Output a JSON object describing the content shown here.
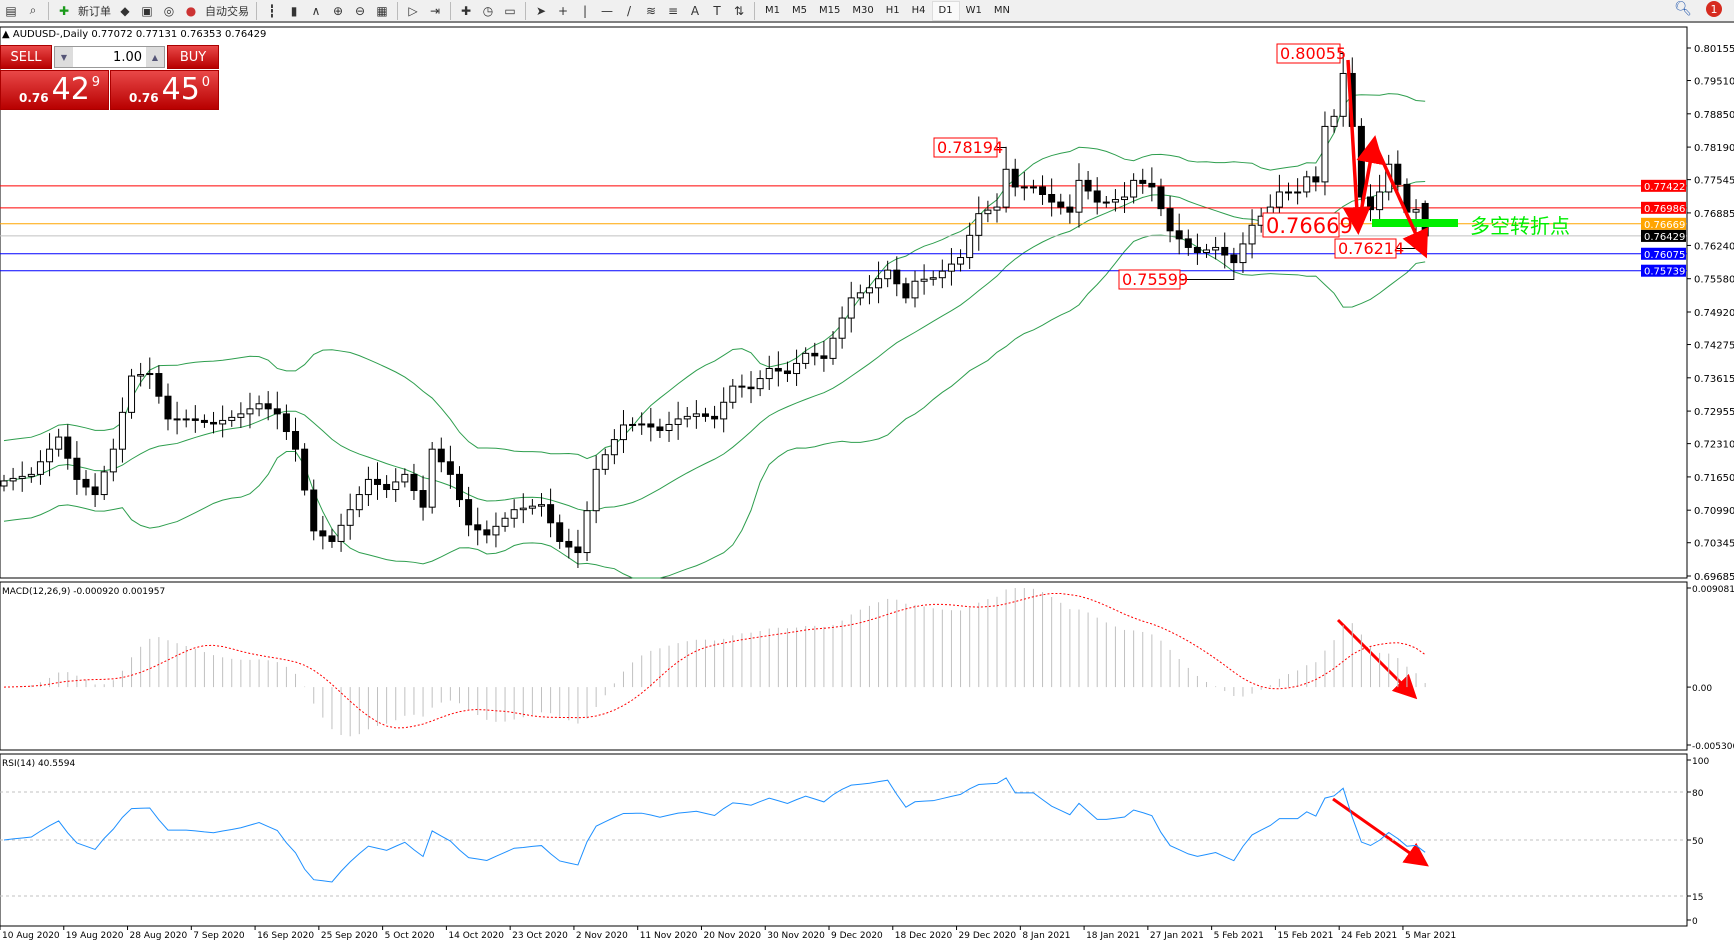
{
  "toolbar": {
    "new_order": "新订单",
    "auto_trading": "自动交易",
    "icons": [
      "chart-icon",
      "zoom-window-icon",
      "new-order-icon",
      "expert-icon",
      "market-watch-icon",
      "signal-icon",
      "auto-trading-icon",
      "bar-chart-icon",
      "candlestick-icon",
      "line-chart-icon",
      "zoom-in-icon",
      "zoom-out-icon",
      "tile-icon",
      "autoscroll-icon",
      "chart-shift-icon",
      "indicators-icon",
      "periods-icon",
      "templates-icon",
      "cursor-icon",
      "crosshair-icon",
      "vertical-line-icon",
      "horizontal-line-icon",
      "trendline-icon",
      "fibonacci-icon",
      "fibonacci-fan-icon",
      "text-icon",
      "text-label-icon",
      "arrows-icon"
    ],
    "timeframes": [
      "M1",
      "M5",
      "M15",
      "M30",
      "H1",
      "H4",
      "D1",
      "W1",
      "MN"
    ],
    "selected_timeframe": "D1",
    "notification_count": "1"
  },
  "chart": {
    "header": "AUDUSD-,Daily  0.77072 0.77131 0.76353 0.76429"
  },
  "trade_panel": {
    "sell_label": "SELL",
    "buy_label": "BUY",
    "lot": "1.00",
    "sell_prefix": "0.76",
    "sell_big": "42",
    "sell_sup": "9",
    "buy_prefix": "0.76",
    "buy_big": "45",
    "buy_sup": "0"
  },
  "colors": {
    "bull_body": "#ffffff",
    "bear_body": "#000000",
    "bands": "#2e9e4e",
    "macd_hist": "#c0c0c0",
    "macd_signal": "#ff0000",
    "rsi": "#1e90ff",
    "annotation": "#ff0000",
    "green_marker": "#00ee00"
  },
  "annotation_text": "多空转折点",
  "chart_data": [
    {
      "type": "candlestick",
      "symbol": "AUDUSD",
      "timeframe": "Daily",
      "ylim": [
        0.69685,
        0.80155
      ],
      "yticks": [
        "0.80155",
        "0.79510",
        "0.78850",
        "0.78190",
        "0.77545",
        "0.76885",
        "0.76240",
        "0.75580",
        "0.74920",
        "0.74275",
        "0.73615",
        "0.72955",
        "0.72310",
        "0.71650",
        "0.70990",
        "0.70345",
        "0.69685"
      ],
      "xticks": [
        "10 Aug 2020",
        "19 Aug 2020",
        "28 Aug 2020",
        "7 Sep 2020",
        "16 Sep 2020",
        "25 Sep 2020",
        "5 Oct 2020",
        "14 Oct 2020",
        "23 Oct 2020",
        "2 Nov 2020",
        "11 Nov 2020",
        "20 Nov 2020",
        "30 Nov 2020",
        "9 Dec 2020",
        "18 Dec 2020",
        "29 Dec 2020",
        "8 Jan 2021",
        "18 Jan 2021",
        "27 Jan 2021",
        "5 Feb 2021",
        "15 Feb 2021",
        "24 Feb 2021",
        "5 Mar 2021"
      ],
      "last_bar": {
        "open": 0.77072,
        "high": 0.77131,
        "low": 0.76353,
        "close": 0.76429
      },
      "close": [
        0.7157,
        0.7162,
        0.7166,
        0.717,
        0.7195,
        0.722,
        0.7244,
        0.7202,
        0.716,
        0.7145,
        0.713,
        0.7175,
        0.722,
        0.7293,
        0.7365,
        0.7368,
        0.737,
        0.7325,
        0.728,
        0.728,
        0.728,
        0.7277,
        0.7273,
        0.727,
        0.7277,
        0.7283,
        0.729,
        0.73,
        0.731,
        0.73,
        0.729,
        0.7255,
        0.722,
        0.7139,
        0.7058,
        0.7048,
        0.7037,
        0.7069,
        0.71,
        0.713,
        0.716,
        0.715,
        0.714,
        0.7155,
        0.717,
        0.7138,
        0.7105,
        0.722,
        0.7195,
        0.717,
        0.712,
        0.707,
        0.706,
        0.705,
        0.7067,
        0.7083,
        0.71,
        0.7103,
        0.7107,
        0.711,
        0.7074,
        0.7037,
        0.7026,
        0.7015,
        0.7098,
        0.718,
        0.7209,
        0.7239,
        0.7268,
        0.7269,
        0.727,
        0.7264,
        0.7257,
        0.7269,
        0.728,
        0.7285,
        0.729,
        0.7285,
        0.728,
        0.7313,
        0.7345,
        0.7343,
        0.734,
        0.736,
        0.738,
        0.7375,
        0.737,
        0.739,
        0.741,
        0.7405,
        0.74,
        0.744,
        0.748,
        0.752,
        0.753,
        0.754,
        0.7558,
        0.7575,
        0.7548,
        0.752,
        0.7553,
        0.7557,
        0.756,
        0.7573,
        0.7587,
        0.76,
        0.7644,
        0.7687,
        0.7694,
        0.77,
        0.7775,
        0.774,
        0.774,
        0.774,
        0.7725,
        0.771,
        0.77,
        0.769,
        0.7753,
        0.7732,
        0.771,
        0.771,
        0.7715,
        0.772,
        0.7753,
        0.7747,
        0.774,
        0.7697,
        0.7653,
        0.7637,
        0.762,
        0.761,
        0.7615,
        0.762,
        0.7605,
        0.759,
        0.7627,
        0.7664,
        0.7682,
        0.77,
        0.773,
        0.773,
        0.773,
        0.776,
        0.775,
        0.786,
        0.788,
        0.7965,
        0.786,
        0.772,
        0.7695,
        0.773,
        0.7785,
        0.7745,
        0.769,
        0.7695,
        0.76429
      ],
      "indicators": [
        "Bollinger Bands"
      ],
      "hlines": [
        {
          "price": "0.77422",
          "color": "#ff0000"
        },
        {
          "price": "0.76986",
          "color": "#ff0000"
        },
        {
          "price": "0.76669",
          "color": "#ffa500"
        },
        {
          "price": "0.76429",
          "color": "#000000"
        },
        {
          "price": "0.76075",
          "color": "#0000ff"
        },
        {
          "price": "0.75739",
          "color": "#0000ff"
        }
      ],
      "price_labels": [
        "0.80055",
        "0.78194",
        "0.76669",
        "0.76214",
        "0.75599"
      ]
    },
    {
      "type": "bar+line",
      "title": "MACD(12,26,9) -0.000920 0.001957",
      "ylim": [
        -0.005306,
        0.009081
      ],
      "yticks": [
        "0.009081",
        "0.00",
        "-0.005306"
      ]
    },
    {
      "type": "line",
      "title": "RSI(14) 40.5594",
      "ylim": [
        0,
        100
      ],
      "yticks": [
        "100",
        "80",
        "50",
        "15",
        "0"
      ],
      "levels": [
        80,
        50,
        15
      ]
    }
  ]
}
